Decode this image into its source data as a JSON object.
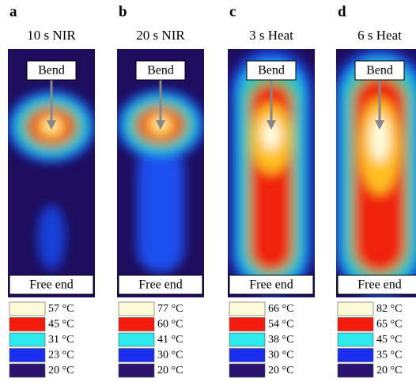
{
  "panels": [
    {
      "letter": "a",
      "title": "10 s NIR",
      "top_label": "Bend",
      "bottom_label": "Free end",
      "legend": [
        {
          "color": "#fdfbd8",
          "label": "57 °C"
        },
        {
          "color": "#f41a0c",
          "label": "45 °C"
        },
        {
          "color": "#2ee8ec",
          "label": "31 °C"
        },
        {
          "color": "#1a2ef0",
          "label": "23 °C"
        },
        {
          "color": "#2a1470",
          "label": "20 °C"
        }
      ]
    },
    {
      "letter": "b",
      "title": "20 s NIR",
      "top_label": "Bend",
      "bottom_label": "Free end",
      "legend": [
        {
          "color": "#fdfbd8",
          "label": "77 °C"
        },
        {
          "color": "#f41a0c",
          "label": "60 °C"
        },
        {
          "color": "#2ee8ec",
          "label": "41 °C"
        },
        {
          "color": "#1a2ef0",
          "label": "30 °C"
        },
        {
          "color": "#2a1470",
          "label": "20 °C"
        }
      ]
    },
    {
      "letter": "c",
      "title": "3 s Heat",
      "top_label": "Bend",
      "bottom_label": "Free end",
      "legend": [
        {
          "color": "#fdfbd8",
          "label": "66 °C"
        },
        {
          "color": "#f41a0c",
          "label": "54 °C"
        },
        {
          "color": "#2ee8ec",
          "label": "38 °C"
        },
        {
          "color": "#1a2ef0",
          "label": "30 °C"
        },
        {
          "color": "#2a1470",
          "label": "20 °C"
        }
      ]
    },
    {
      "letter": "d",
      "title": "6 s Heat",
      "top_label": "Bend",
      "bottom_label": "Free end",
      "legend": [
        {
          "color": "#fdfbd8",
          "label": "82 °C"
        },
        {
          "color": "#f41a0c",
          "label": "65 °C"
        },
        {
          "color": "#2ee8ec",
          "label": "45 °C"
        },
        {
          "color": "#1a2ef0",
          "label": "35 °C"
        },
        {
          "color": "#2a1470",
          "label": "20 °C"
        }
      ]
    }
  ]
}
